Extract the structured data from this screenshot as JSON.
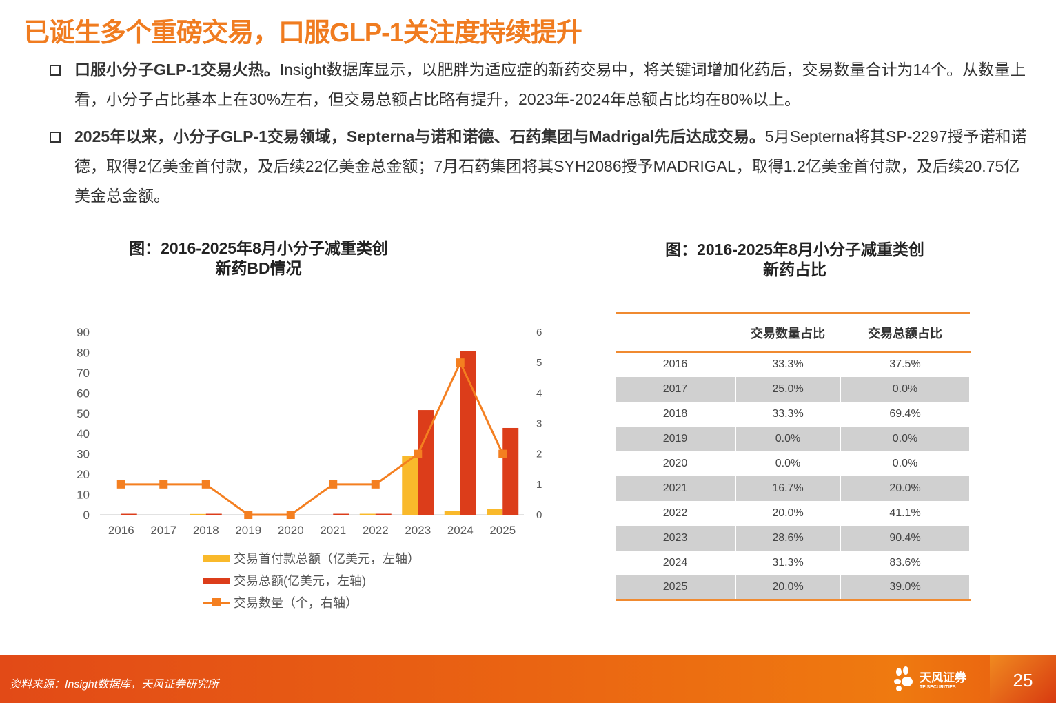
{
  "title": "已诞生多个重磅交易，口服GLP-1关注度持续提升",
  "bullets": [
    {
      "bold": "口服小分子GLP-1交易火热。",
      "text": "Insight数据库显示，以肥胖为适应症的新药交易中，将关键词增加化药后，交易数量合计为14个。从数量上看，小分子占比基本上在30%左右，但交易总额占比略有提升，2023年-2024年总额占比均在80%以上。"
    },
    {
      "bold": "2025年以来，小分子GLP-1交易领域，Septerna与诺和诺德、石药集团与Madrigal先后达成交易。",
      "text": "5月Septerna将其SP-2297授予诺和诺德，取得2亿美金首付款，及后续22亿美金总金额；7月石药集团将其SYH2086授予MADRIGAL，取得1.2亿美金首付款，及后续20.75亿美金总金额。"
    }
  ],
  "chart_title_left": "图：2016-2025年8月小分子减重类创新药BD情况",
  "chart_title_left_lines": [
    "图：2016-2025年8月小分子减重类创",
    "新药BD情况"
  ],
  "chart_title_right_lines": [
    "图：2016-2025年8月小分子减重类创",
    "新药占比"
  ],
  "chart_data": {
    "type": "bar+line",
    "categories": [
      "2016",
      "2017",
      "2018",
      "2019",
      "2020",
      "2021",
      "2022",
      "2023",
      "2024",
      "2025"
    ],
    "left_axis": {
      "ylim": [
        0,
        90
      ],
      "ticks": [
        0,
        10,
        20,
        30,
        40,
        50,
        60,
        70,
        80,
        90
      ]
    },
    "right_axis": {
      "ylim": [
        0,
        6
      ],
      "ticks": [
        0,
        1,
        2,
        3,
        4,
        5,
        6
      ]
    },
    "series": [
      {
        "name": "交易首付款总额（亿美元，左轴）",
        "type": "bar",
        "axis": "left",
        "color": "#f9b92b",
        "values": [
          0,
          0,
          0.4,
          0,
          0,
          0,
          0.5,
          29.2,
          2,
          3
        ]
      },
      {
        "name": "交易总额(亿美元，左轴)",
        "type": "bar",
        "axis": "left",
        "color": "#dc3d1a",
        "values": [
          0.5,
          0,
          0.5,
          0,
          0,
          0.5,
          0.5,
          51.6,
          80.5,
          42.8
        ]
      },
      {
        "name": "交易数量（个，右轴）",
        "type": "line",
        "axis": "right",
        "color": "#f47f20",
        "values": [
          1,
          1,
          1,
          0,
          0,
          1,
          1,
          2,
          5,
          2
        ]
      }
    ],
    "legend_placement": "bottom",
    "grid": false
  },
  "table": {
    "headers": [
      "",
      "交易数量占比",
      "交易总额占比"
    ],
    "rows": [
      [
        "2016",
        "33.3%",
        "37.5%"
      ],
      [
        "2017",
        "25.0%",
        "0.0%"
      ],
      [
        "2018",
        "33.3%",
        "69.4%"
      ],
      [
        "2019",
        "0.0%",
        "0.0%"
      ],
      [
        "2020",
        "0.0%",
        "0.0%"
      ],
      [
        "2021",
        "16.7%",
        "20.0%"
      ],
      [
        "2022",
        "20.0%",
        "41.1%"
      ],
      [
        "2023",
        "28.6%",
        "90.4%"
      ],
      [
        "2024",
        "31.3%",
        "83.6%"
      ],
      [
        "2025",
        "20.0%",
        "39.0%"
      ]
    ]
  },
  "footer": {
    "source": "资料来源：Insight数据库，天风证券研究所",
    "logo_cn": "天风证券",
    "logo_en": "TF SECURITIES",
    "page": "25"
  }
}
